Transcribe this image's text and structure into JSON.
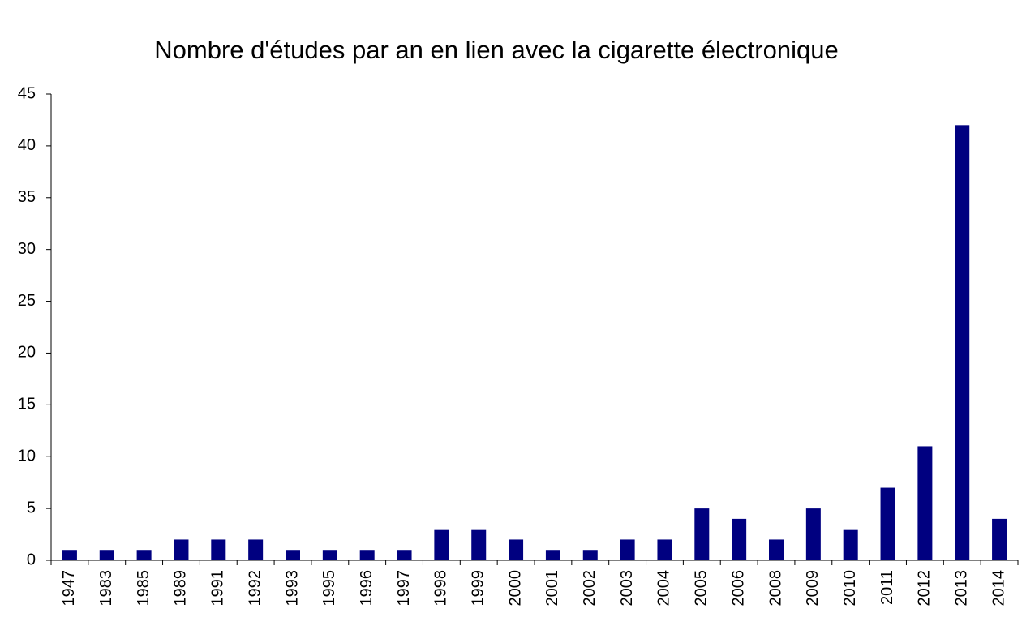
{
  "chart_data": {
    "type": "bar",
    "title": "Nombre d'études par an en lien avec la cigarette électronique",
    "categories": [
      "1947",
      "1983",
      "1985",
      "1989",
      "1991",
      "1992",
      "1993",
      "1995",
      "1996",
      "1997",
      "1998",
      "1999",
      "2000",
      "2001",
      "2002",
      "2003",
      "2004",
      "2005",
      "2006",
      "2008",
      "2009",
      "2010",
      "2011",
      "2012",
      "2013",
      "2014"
    ],
    "values": [
      1,
      1,
      1,
      2,
      2,
      2,
      1,
      1,
      1,
      1,
      3,
      3,
      2,
      1,
      1,
      2,
      2,
      5,
      4,
      2,
      5,
      3,
      7,
      11,
      42,
      4
    ],
    "color": "#000080",
    "ylim": [
      0,
      45
    ],
    "yticks": [
      0,
      5,
      10,
      15,
      20,
      25,
      30,
      35,
      40,
      45
    ],
    "grid": false
  }
}
